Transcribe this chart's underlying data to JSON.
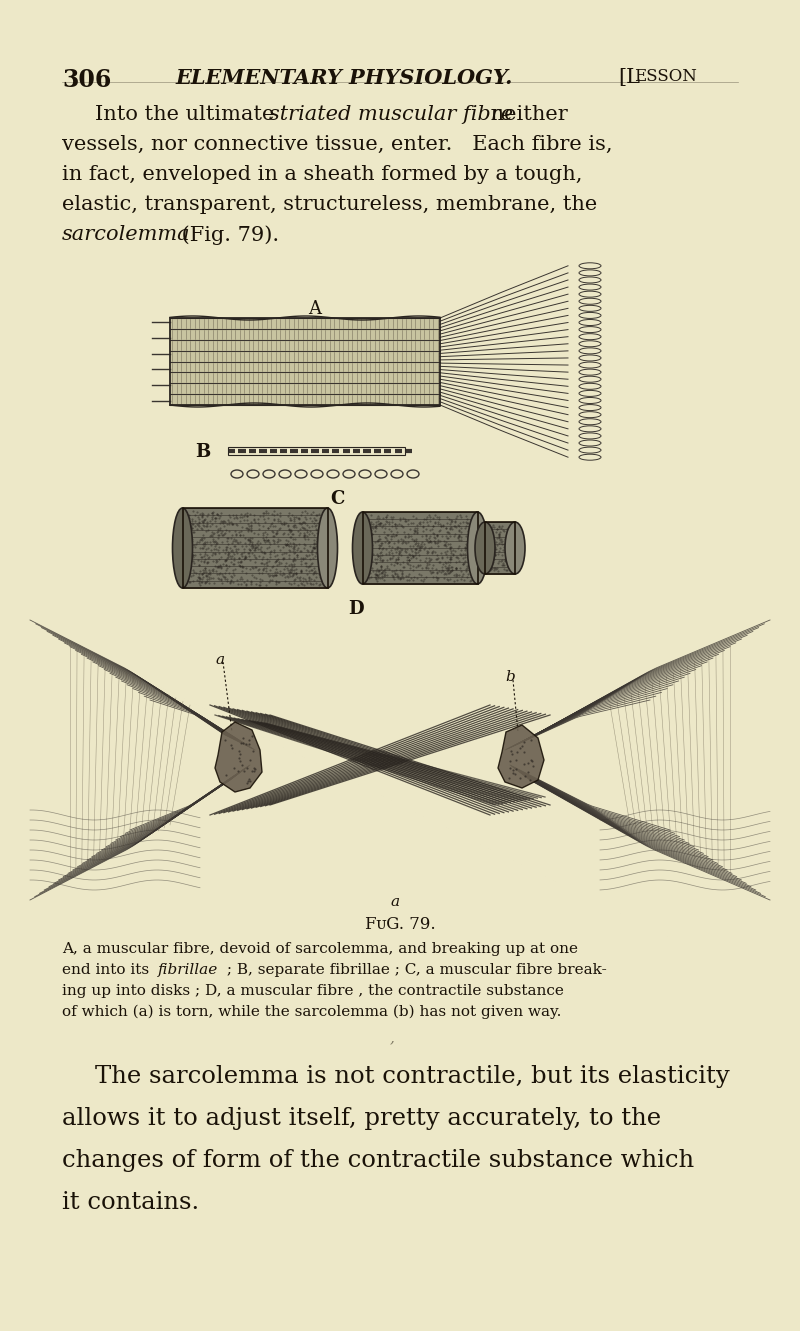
{
  "bg_color": "#ede8c8",
  "page_number": "306",
  "header_title": "ELEMENTARY PHYSIOLOGY.",
  "header_right": "[Lesson",
  "text_color": "#1a1208",
  "fig_caption": "Fig. 79.",
  "caption_lines": [
    "A, a muscular fibre, devoid of sarcolemma, and breaking up at one",
    "end into its fibrillae ; B, separate fibrillae ; C, a muscular fibre break-",
    "ing up into disks ; D, a muscular fibre , the contractile substance",
    "of which (a) is torn, while the sarcolemma (b) has not given way."
  ],
  "para2_lines": [
    "The sarcolemma is not contractile, but its elasticity",
    "allows it to adjust itself, pretty accurately, to the",
    "changes of form of the contractile substance which",
    "it contains."
  ],
  "label_A": "A",
  "label_B": "B",
  "label_C": "C",
  "label_D": "D"
}
